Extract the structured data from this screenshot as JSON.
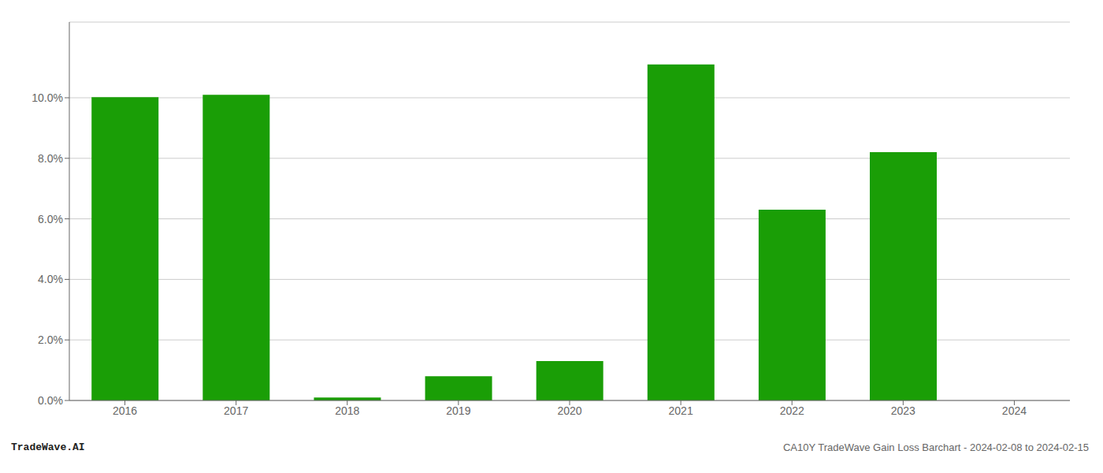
{
  "chart_data": {
    "type": "bar",
    "categories": [
      "2016",
      "2017",
      "2018",
      "2019",
      "2020",
      "2021",
      "2022",
      "2023",
      "2024"
    ],
    "values": [
      0.1002,
      0.101,
      0.001,
      0.008,
      0.013,
      0.111,
      0.063,
      0.082,
      0.0
    ],
    "color": "#1a9e06",
    "ylim": [
      0,
      0.125
    ],
    "yticks": [
      {
        "value": 0.0,
        "label": "0.0%"
      },
      {
        "value": 0.02,
        "label": "2.0%"
      },
      {
        "value": 0.04,
        "label": "4.0%"
      },
      {
        "value": 0.06,
        "label": "6.0%"
      },
      {
        "value": 0.08,
        "label": "8.0%"
      },
      {
        "value": 0.1,
        "label": "10.0%"
      }
    ],
    "grid": true,
    "annotations": [
      "TradeWave.AI",
      "CA10Y TradeWave Gain Loss Barchart - 2024-02-08 to 2024-02-15"
    ]
  }
}
